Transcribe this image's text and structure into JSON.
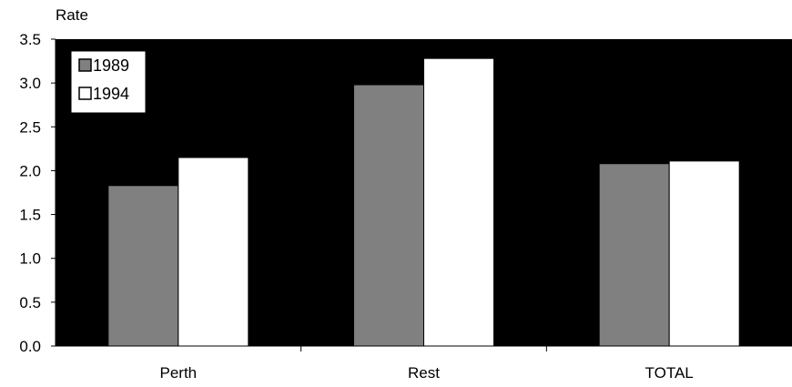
{
  "chart_data": {
    "type": "bar",
    "ylabel": "Rate",
    "xlabel": "",
    "title": "",
    "categories": [
      "Perth",
      "Rest",
      "TOTAL"
    ],
    "series": [
      {
        "name": "1989",
        "values": [
          1.83,
          2.98,
          2.08
        ],
        "color": "#808080"
      },
      {
        "name": "1994",
        "values": [
          2.15,
          3.28,
          2.11
        ],
        "color": "#ffffff"
      }
    ],
    "ylim": [
      0,
      3.5
    ],
    "yticks": [
      "0.0",
      "0.5",
      "1.0",
      "1.5",
      "2.0",
      "2.5",
      "3.0",
      "3.5"
    ],
    "plot_background": "#000000",
    "grid": false,
    "legend_position": "top-left"
  }
}
